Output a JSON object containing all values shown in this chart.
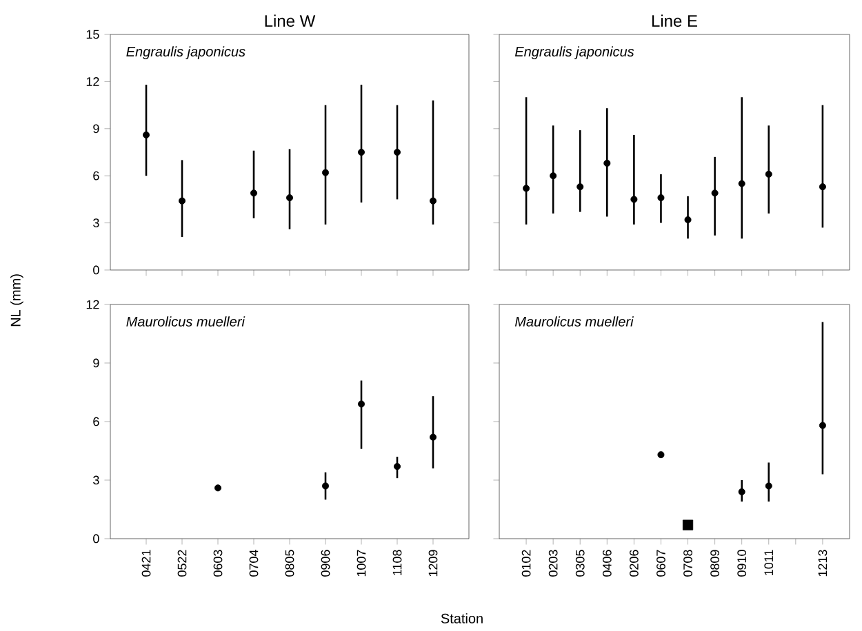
{
  "chart_data": [
    {
      "type": "scatter",
      "title": "Line W",
      "annotations": [
        "Engraulis japonicus"
      ],
      "tick_labels": "y",
      "categories": [
        "0421",
        "0522",
        "0603",
        "0704",
        "0805",
        "0906",
        "1007",
        "1108",
        "1209"
      ],
      "ylim": [
        0,
        15
      ],
      "yticks": [
        0,
        3,
        6,
        9,
        12,
        15
      ],
      "series": [
        {
          "color": "#000000",
          "marker": "circle",
          "values": [
            8.6,
            4.4,
            null,
            4.9,
            4.6,
            6.2,
            7.5,
            7.5,
            4.4
          ],
          "errors": [
            [
              6.0,
              11.8
            ],
            [
              2.1,
              7.0
            ],
            null,
            [
              3.3,
              7.6
            ],
            [
              2.6,
              7.7
            ],
            [
              2.9,
              10.5
            ],
            [
              4.3,
              11.8
            ],
            [
              4.5,
              10.5
            ],
            [
              2.9,
              10.8
            ]
          ]
        }
      ]
    },
    {
      "type": "scatter",
      "title": "Line E",
      "annotations": [
        "Engraulis japonicus"
      ],
      "tick_labels": false,
      "categories": [
        "0102",
        "0203",
        "0305",
        "0406",
        "0206",
        "0607",
        "0708",
        "0809",
        "0910",
        "1011",
        null,
        "1213"
      ],
      "ylim": [
        0,
        15
      ],
      "yticks": [
        0,
        3,
        6,
        9,
        12,
        15
      ],
      "series": [
        {
          "color": "#000000",
          "marker": "circle",
          "values": [
            5.2,
            6.0,
            5.3,
            6.8,
            4.5,
            4.6,
            3.2,
            4.9,
            5.5,
            6.1,
            null,
            5.3
          ],
          "errors": [
            [
              2.9,
              11.0
            ],
            [
              3.6,
              9.2
            ],
            [
              3.7,
              8.9
            ],
            [
              3.4,
              10.3
            ],
            [
              2.9,
              8.6
            ],
            [
              3.0,
              6.1
            ],
            [
              2.0,
              4.7
            ],
            [
              2.2,
              7.2
            ],
            [
              2.0,
              11.0
            ],
            [
              3.6,
              9.2
            ],
            null,
            [
              2.7,
              10.5
            ]
          ]
        }
      ]
    },
    {
      "type": "scatter",
      "annotations": [
        "Maurolicus muelleri"
      ],
      "xlabel": "Station",
      "ylabel": "NL (mm)",
      "categories": [
        "0421",
        "0522",
        "0603",
        "0704",
        "0805",
        "0906",
        "1007",
        "1108",
        "1209"
      ],
      "ylim": [
        0,
        12
      ],
      "yticks": [
        0,
        3,
        6,
        9,
        12
      ],
      "series": [
        {
          "color": "#000000",
          "marker": "circle",
          "values": [
            null,
            null,
            2.6,
            null,
            null,
            2.7,
            6.9,
            3.7,
            5.2
          ],
          "errors": [
            null,
            null,
            null,
            null,
            null,
            [
              2.0,
              3.4
            ],
            [
              4.6,
              8.1
            ],
            [
              3.1,
              4.2
            ],
            [
              3.6,
              7.3
            ]
          ]
        }
      ]
    },
    {
      "type": "scatter",
      "annotations": [
        "Maurolicus muelleri"
      ],
      "tick_labels": "x",
      "categories": [
        "0102",
        "0203",
        "0305",
        "0406",
        "0206",
        "0607",
        "0708",
        "0809",
        "0910",
        "1011",
        null,
        "1213"
      ],
      "ylim": [
        0,
        12
      ],
      "yticks": [
        0,
        3,
        6,
        9,
        12
      ],
      "series": [
        {
          "color": "#000000",
          "marker": "circle",
          "values": [
            null,
            null,
            null,
            null,
            null,
            4.3,
            null,
            null,
            2.4,
            2.7,
            null,
            5.8
          ],
          "errors": [
            null,
            null,
            null,
            null,
            null,
            null,
            null,
            null,
            [
              1.9,
              3.0
            ],
            [
              1.9,
              3.9
            ],
            null,
            [
              3.3,
              11.1
            ]
          ]
        },
        {
          "color": "#000000",
          "marker": "square",
          "values": [
            null,
            null,
            null,
            null,
            null,
            null,
            0.7,
            null,
            null,
            null,
            null,
            null
          ]
        }
      ]
    }
  ]
}
